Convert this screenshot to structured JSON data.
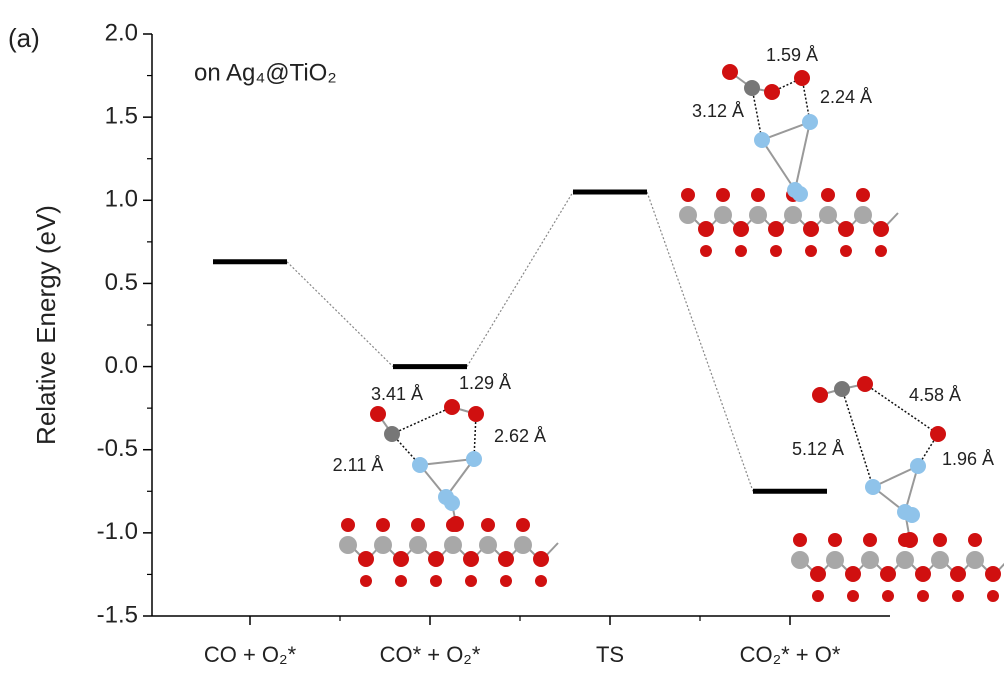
{
  "chart_data": {
    "type": "energy_levels",
    "panel_label": "(a)",
    "title": "on Ag₄@TiO₂",
    "y_label": "Relative Energy (eV)",
    "categories": [
      "CO + O₂*",
      "CO* + O₂*",
      "TS",
      "CO₂* + O*"
    ],
    "values": [
      0.63,
      0.0,
      1.05,
      -0.75
    ],
    "color": "#000000",
    "connector_color": "#888888",
    "ylim": [
      -1.5,
      2.0
    ],
    "yticks": [
      {
        "value": 2.0,
        "label": "2.0"
      },
      1.5,
      {
        "value": 1.0,
        "label": "1.0"
      },
      0.5,
      {
        "value": 0.0,
        "label": "0.0"
      },
      -0.5,
      {
        "value": -1.0,
        "label": "-1.0"
      },
      -1.5
    ],
    "annotations": [
      "3.41 Å",
      "1.29 Å",
      "2.62 Å",
      "2.11 Å",
      "1.59 Å",
      "3.12 Å",
      "2.24 Å",
      "4.58 Å",
      "5.12 Å",
      "1.96 Å"
    ]
  }
}
